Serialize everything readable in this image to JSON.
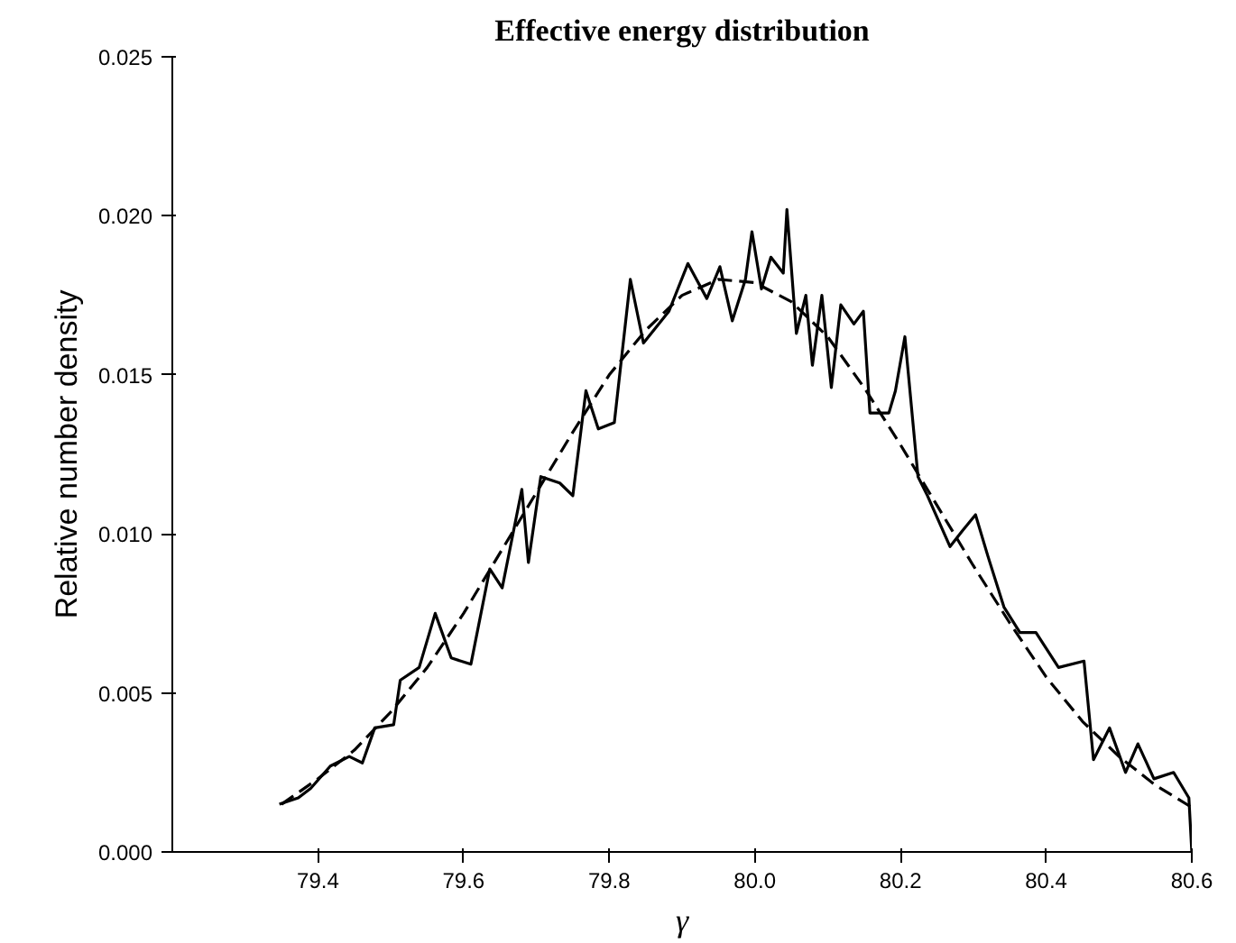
{
  "chart_data": {
    "type": "line",
    "title": "Effective energy distribution",
    "xlabel": "γ",
    "ylabel": "Relative number density",
    "xlim": [
      79.2,
      80.6
    ],
    "ylim": [
      0,
      0.025
    ],
    "xticks": [
      79.4,
      79.6,
      79.8,
      {
        "value": 80.0,
        "label": "80.0"
      },
      80.2,
      80.4,
      80.6
    ],
    "yticks": [
      {
        "value": 0,
        "label": "0.000"
      },
      0.005,
      {
        "value": 0.01,
        "label": "0.010"
      },
      0.015,
      {
        "value": 0.02,
        "label": "0.020"
      },
      0.025
    ],
    "grid": false,
    "marker": "none",
    "series": [
      {
        "color": "#000000",
        "line_style": "solid",
        "x": [
          79.347,
          79.373,
          79.39,
          79.417,
          79.443,
          79.461,
          79.478,
          79.504,
          79.513,
          79.539,
          79.561,
          79.583,
          79.61,
          79.636,
          79.653,
          79.68,
          79.689,
          79.706,
          79.732,
          79.75,
          79.768,
          79.785,
          79.807,
          79.829,
          79.847,
          79.882,
          79.908,
          79.934,
          79.952,
          79.969,
          79.987,
          79.996,
          80.009,
          80.022,
          80.039,
          80.044,
          80.057,
          80.07,
          80.079,
          80.092,
          80.105,
          80.118,
          80.136,
          80.149,
          80.158,
          80.184,
          80.193,
          80.206,
          80.224,
          80.237,
          80.268,
          80.285,
          80.303,
          80.32,
          80.342,
          80.364,
          80.386,
          80.417,
          80.452,
          80.465,
          80.487,
          80.509,
          80.526,
          80.548,
          80.575,
          80.596,
          80.6
        ],
        "values": [
          0.0015,
          0.0017,
          0.002,
          0.0027,
          0.003,
          0.0028,
          0.0039,
          0.004,
          0.0054,
          0.0058,
          0.0075,
          0.0061,
          0.0059,
          0.0089,
          0.0083,
          0.0114,
          0.0091,
          0.0118,
          0.0116,
          0.0112,
          0.0145,
          0.0133,
          0.0135,
          0.018,
          0.016,
          0.017,
          0.0185,
          0.0174,
          0.0184,
          0.0167,
          0.018,
          0.0195,
          0.0177,
          0.0187,
          0.0182,
          0.0202,
          0.0163,
          0.0175,
          0.0153,
          0.0175,
          0.0146,
          0.0172,
          0.0166,
          0.017,
          0.0138,
          0.0138,
          0.0145,
          0.0162,
          0.0118,
          0.0112,
          0.0096,
          0.0101,
          0.0106,
          0.0093,
          0.0077,
          0.0069,
          0.0069,
          0.0058,
          0.006,
          0.0029,
          0.0039,
          0.0025,
          0.0034,
          0.0023,
          0.0025,
          0.0017,
          0.0
        ]
      },
      {
        "color": "#000000",
        "line_style": "dashed",
        "x": [
          79.35,
          79.4,
          79.45,
          79.5,
          79.55,
          79.6,
          79.65,
          79.7,
          79.75,
          79.8,
          79.85,
          79.9,
          79.95,
          80.0,
          80.05,
          80.1,
          80.15,
          80.2,
          80.25,
          80.3,
          80.35,
          80.4,
          80.45,
          80.5,
          80.55,
          80.6
        ],
        "values": [
          0.0015,
          0.0023,
          0.0032,
          0.0044,
          0.0058,
          0.0075,
          0.0094,
          0.0113,
          0.0132,
          0.015,
          0.0164,
          0.0175,
          0.018,
          0.0179,
          0.0173,
          0.0162,
          0.0146,
          0.0128,
          0.0109,
          0.009,
          0.0072,
          0.0055,
          0.0041,
          0.003,
          0.0021,
          0.0014
        ]
      }
    ]
  }
}
